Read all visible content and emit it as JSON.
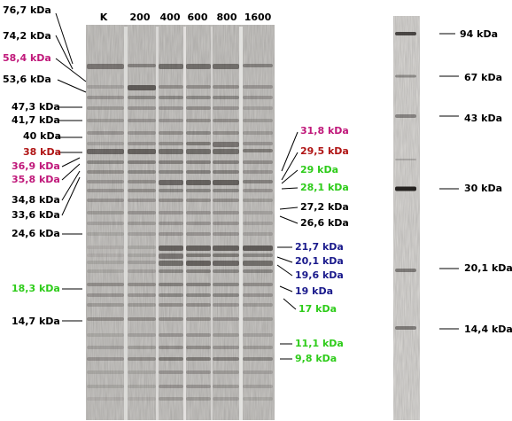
{
  "lanes": [
    "K",
    "200",
    "400",
    "600",
    "800",
    "1600"
  ],
  "left_markers": [
    {
      "text": "76,7 kDa",
      "color": "#000000"
    },
    {
      "text": "74,2 kDa",
      "color": "#000000"
    },
    {
      "text": "58,4 kDa",
      "color": "#c0187a"
    },
    {
      "text": "53,6 kDa",
      "color": "#000000"
    },
    {
      "text": "47,3 kDa",
      "color": "#000000"
    },
    {
      "text": "41,7 kDa",
      "color": "#000000"
    },
    {
      "text": "40 kDa",
      "color": "#000000"
    },
    {
      "text": "38 kDa",
      "color": "#b01515"
    },
    {
      "text": "36,9 kDa",
      "color": "#c0187a"
    },
    {
      "text": "35,8 kDa",
      "color": "#c0187a"
    },
    {
      "text": "34,8 kDa",
      "color": "#000000"
    },
    {
      "text": "33,6 kDa",
      "color": "#000000"
    },
    {
      "text": "24,6 kDa",
      "color": "#000000"
    },
    {
      "text": "18,3 kDa",
      "color": "#2ecc1a"
    },
    {
      "text": "14,7 kDa",
      "color": "#000000"
    }
  ],
  "right_markers": [
    {
      "text": "31,8 kDa",
      "color": "#c0187a"
    },
    {
      "text": "29,5 kDa",
      "color": "#b01515"
    },
    {
      "text": "29 kDa",
      "color": "#2ecc1a"
    },
    {
      "text": "28,1 kDa",
      "color": "#2ecc1a"
    },
    {
      "text": "27,2 kDa",
      "color": "#000000"
    },
    {
      "text": "26,6 kDa",
      "color": "#000000"
    },
    {
      "text": "21,7 kDa",
      "color": "#1a1a8c"
    },
    {
      "text": "20,1 kDa",
      "color": "#1a1a8c"
    },
    {
      "text": "19,6 kDa",
      "color": "#1a1a8c"
    },
    {
      "text": "19 kDa",
      "color": "#1a1a8c"
    },
    {
      "text": "17 kDa",
      "color": "#2ecc1a"
    },
    {
      "text": "11,1 kDa",
      "color": "#2ecc1a"
    },
    {
      "text": "9,8 kDa",
      "color": "#2ecc1a"
    }
  ],
  "ladder_markers": [
    {
      "text": "94 kDa"
    },
    {
      "text": "67 kDa"
    },
    {
      "text": "43 kDa"
    },
    {
      "text": "30 kDa"
    },
    {
      "text": "20,1 kDa"
    },
    {
      "text": "14,4 kDa"
    }
  ]
}
